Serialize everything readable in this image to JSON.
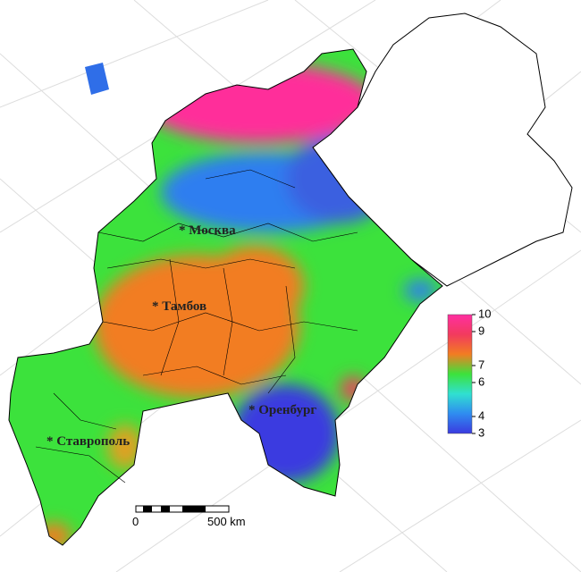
{
  "map": {
    "cities": [
      "* Москва",
      "* Тамбов",
      "* Оренбург",
      "* Ставрополь"
    ],
    "scale_bar": {
      "start": "0",
      "end": "500 km"
    },
    "legend": {
      "range": [
        3,
        10
      ],
      "ticks": [
        3,
        4,
        6,
        7,
        9,
        10
      ],
      "colors": [
        "#3a3ae0",
        "#2f8cf0",
        "#30e0d0",
        "#3ce23c",
        "#f27d22",
        "#f23a5e",
        "#ff2fa0"
      ]
    }
  }
}
